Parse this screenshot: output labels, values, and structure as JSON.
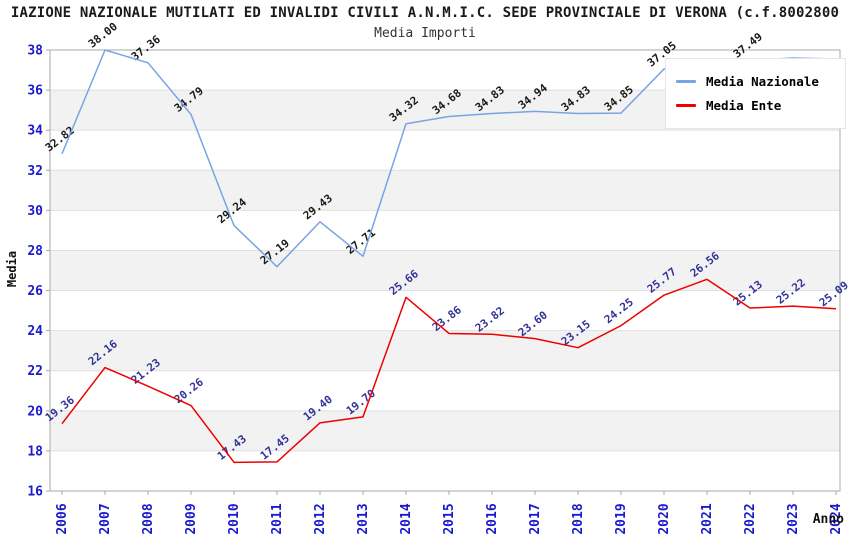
{
  "header": {
    "title": "IAZIONE NAZIONALE MUTILATI ED INVALIDI CIVILI A.N.M.I.C. SEDE PROVINCIALE DI VERONA (c.f.8002800",
    "title_note": "title truncated at both screen edges",
    "subtitle": "Media Importi"
  },
  "chart_data": {
    "type": "line",
    "title": "Media Importi",
    "xlabel": "Anno",
    "ylabel": "Media",
    "x": [
      "2006",
      "2007",
      "2008",
      "2009",
      "2010",
      "2011",
      "2012",
      "2013",
      "2014",
      "2015",
      "2016",
      "2017",
      "2018",
      "2019",
      "2020",
      "2021",
      "2022",
      "2023",
      "2024"
    ],
    "ylim": [
      16,
      38
    ],
    "ytick_step": 2,
    "grid": "horizontal-bands-alternating",
    "legend_position": "top-right-inside",
    "series": [
      {
        "name": "Media Nazionale",
        "color": "#78a4e4",
        "label_color": "#1a1a1a",
        "values": [
          32.82,
          38.0,
          37.36,
          34.79,
          29.24,
          27.19,
          29.43,
          27.71,
          34.32,
          34.68,
          34.83,
          34.94,
          34.83,
          34.85,
          37.05,
          37.46,
          37.49,
          37.6,
          37.55
        ],
        "labels": [
          "32.82",
          "38.00",
          "37.36",
          "34.79",
          "29.24",
          "27.19",
          "29.43",
          "27.71",
          "34.32",
          "34.68",
          "34.83",
          "34.94",
          "34.83",
          "34.85",
          "37.05",
          null,
          "37.49",
          null,
          null
        ],
        "note": "labels for 2021, 2023, 2024 are hidden behind the legend box; those values estimated from line position"
      },
      {
        "name": "Media Ente",
        "color": "#ee0000",
        "label_color": "#333399",
        "values": [
          19.36,
          22.16,
          21.23,
          20.26,
          17.43,
          17.45,
          19.4,
          19.7,
          25.66,
          23.86,
          23.82,
          23.6,
          23.15,
          24.25,
          25.77,
          26.56,
          25.13,
          25.22,
          25.09
        ],
        "labels": [
          "19.36",
          "22.16",
          "21.23",
          "20.26",
          "17.43",
          "17.45",
          "19.40",
          "19.70",
          "25.66",
          "23.86",
          "23.82",
          "23.60",
          "23.15",
          "24.25",
          "25.77",
          "26.56",
          "25.13",
          "25.22",
          "25.09"
        ]
      }
    ],
    "legend": [
      "Media Nazionale",
      "Media Ente"
    ]
  },
  "colors": {
    "tick_label": "#1a1acd",
    "band": "#f2f2f2",
    "gridline": "#e0e0e0",
    "plot_border": "#aaaaaa",
    "background": "#ffffff"
  }
}
